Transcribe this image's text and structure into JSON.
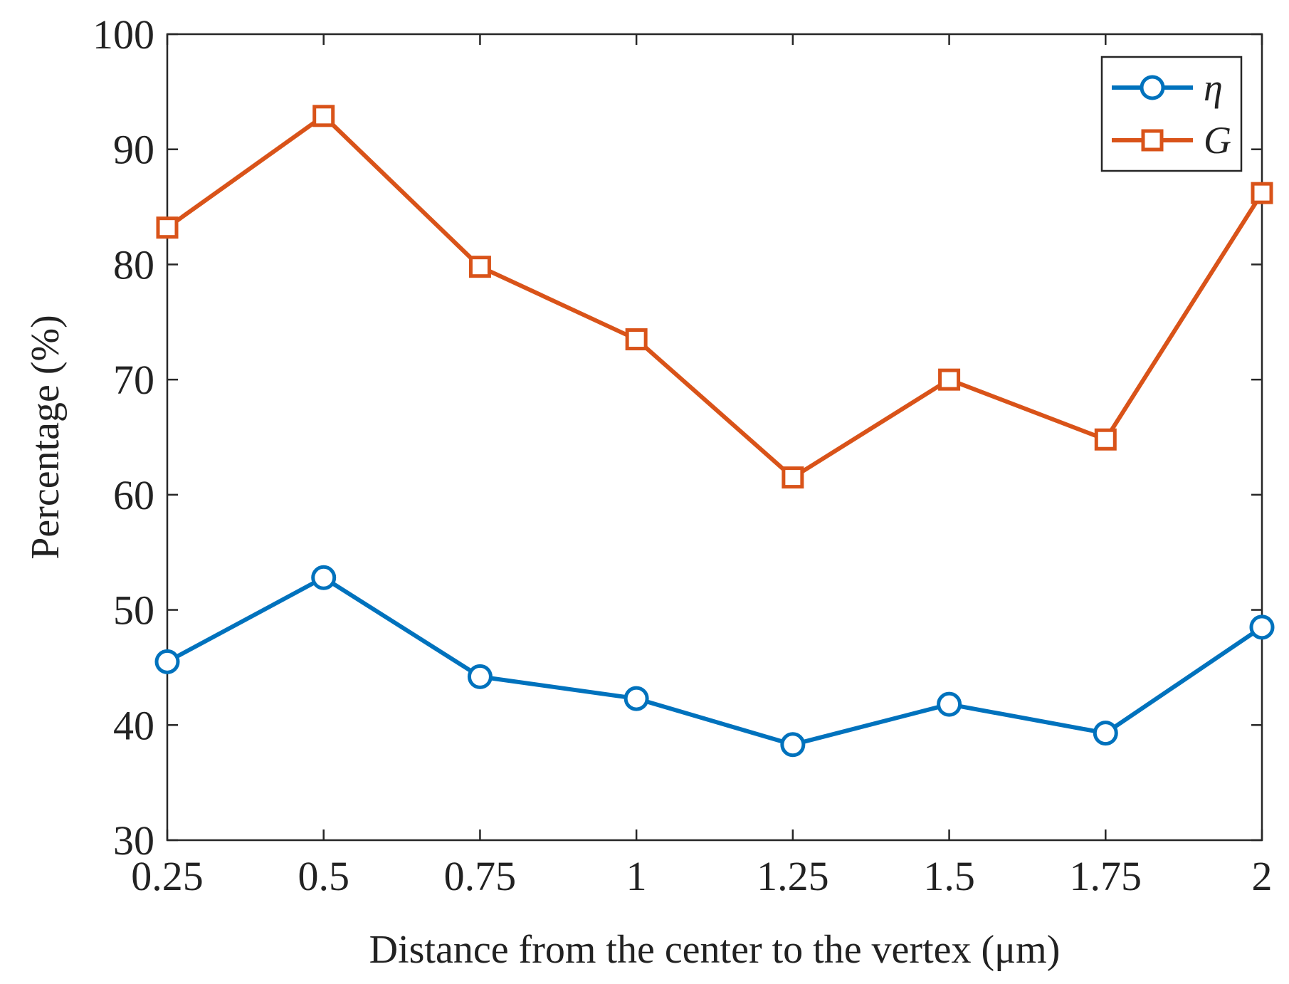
{
  "chart_data": {
    "type": "line",
    "title": "",
    "xlabel": "Distance from the center to the vertex (μm)",
    "ylabel": "Percentage (%)",
    "x": [
      0.25,
      0.5,
      0.75,
      1,
      1.25,
      1.5,
      1.75,
      2
    ],
    "x_tick_labels": [
      "0.25",
      "0.5",
      "0.75",
      "1",
      "1.25",
      "1.5",
      "1.75",
      "2"
    ],
    "y_ticks": [
      30,
      40,
      50,
      60,
      70,
      80,
      90,
      100
    ],
    "y_tick_labels": [
      "30",
      "40",
      "50",
      "60",
      "70",
      "80",
      "90",
      "100"
    ],
    "xlim": [
      0.25,
      2
    ],
    "ylim": [
      30,
      100
    ],
    "grid": false,
    "legend_position": "top-right",
    "series": [
      {
        "name": "η",
        "marker": "circle",
        "color": "#0072bd",
        "values": [
          45.5,
          52.8,
          44.2,
          42.3,
          38.3,
          41.8,
          39.3,
          48.5
        ]
      },
      {
        "name": "G",
        "marker": "square",
        "color": "#d95319",
        "values": [
          83.2,
          92.9,
          79.8,
          73.5,
          61.5,
          70.0,
          64.8,
          86.2
        ]
      }
    ]
  }
}
